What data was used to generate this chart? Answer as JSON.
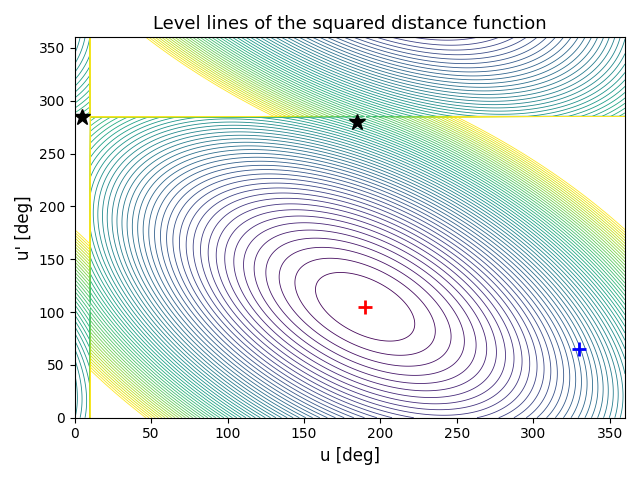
{
  "title": "Level lines of the squared distance function",
  "xlabel": "u [deg]",
  "ylabel": "u' [deg]",
  "xlim": [
    0,
    360
  ],
  "ylim": [
    0,
    360
  ],
  "xticks": [
    0,
    50,
    100,
    150,
    200,
    250,
    300,
    350
  ],
  "yticks": [
    0,
    50,
    100,
    150,
    200,
    250,
    300,
    350
  ],
  "red_plus": [
    190,
    105
  ],
  "blue_plus": [
    330,
    65
  ],
  "star1": [
    5,
    285
  ],
  "star2": [
    185,
    280
  ],
  "n_contours": 60,
  "colormap": "viridis",
  "figsize": [
    6.4,
    4.8
  ],
  "dpi": 100,
  "cross_term": 1.0,
  "level_max_percentile": 90
}
